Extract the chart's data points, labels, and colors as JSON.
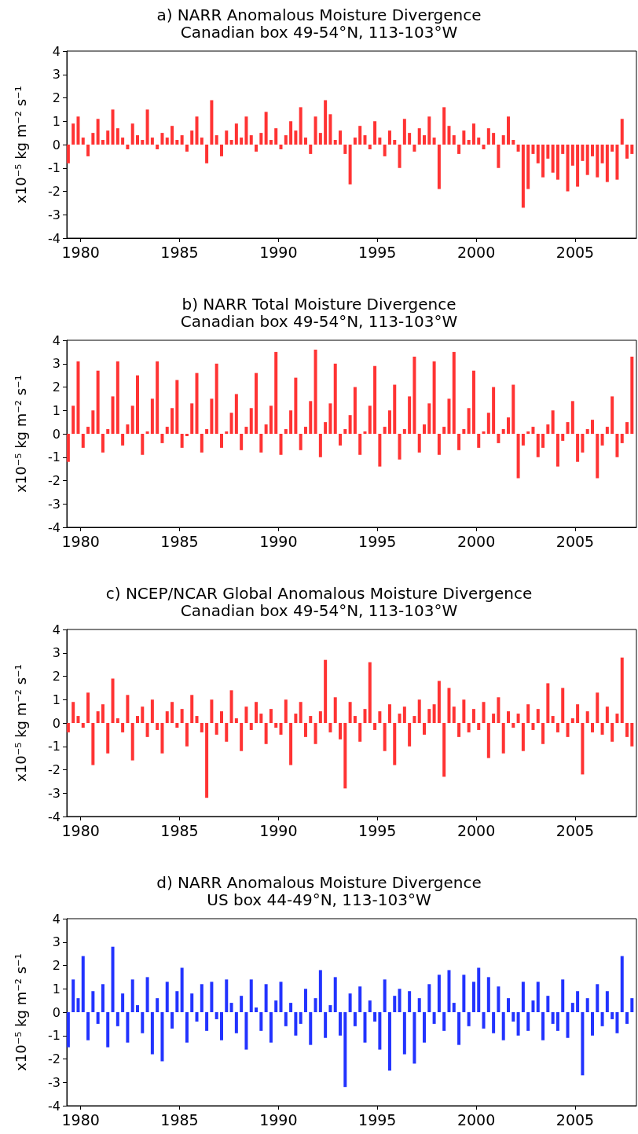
{
  "chart_data": [
    {
      "type": "bar",
      "title": "a) NARR Anomalous Moisture Divergence",
      "subtitle": "Canadian box 49-54°N, 113-103°W",
      "ylabel": "x10⁻⁵ kg m⁻² s⁻¹",
      "color": "#ff3333",
      "xlim": [
        1979.3,
        2008.1
      ],
      "xticks": [
        1980,
        1985,
        1990,
        1995,
        2000,
        2005
      ],
      "ylim": [
        -4,
        4
      ],
      "yticks": [
        -4,
        -3,
        -2,
        -1,
        0,
        1,
        2,
        3,
        4
      ],
      "x": [
        1979.375,
        1979.625,
        1979.875,
        1980.125,
        1980.375,
        1980.625,
        1980.875,
        1981.125,
        1981.375,
        1981.625,
        1981.875,
        1982.125,
        1982.375,
        1982.625,
        1982.875,
        1983.125,
        1983.375,
        1983.625,
        1983.875,
        1984.125,
        1984.375,
        1984.625,
        1984.875,
        1985.125,
        1985.375,
        1985.625,
        1985.875,
        1986.125,
        1986.375,
        1986.625,
        1986.875,
        1987.125,
        1987.375,
        1987.625,
        1987.875,
        1988.125,
        1988.375,
        1988.625,
        1988.875,
        1989.125,
        1989.375,
        1989.625,
        1989.875,
        1990.125,
        1990.375,
        1990.625,
        1990.875,
        1991.125,
        1991.375,
        1991.625,
        1991.875,
        1992.125,
        1992.375,
        1992.625,
        1992.875,
        1993.125,
        1993.375,
        1993.625,
        1993.875,
        1994.125,
        1994.375,
        1994.625,
        1994.875,
        1995.125,
        1995.375,
        1995.625,
        1995.875,
        1996.125,
        1996.375,
        1996.625,
        1996.875,
        1997.125,
        1997.375,
        1997.625,
        1997.875,
        1998.125,
        1998.375,
        1998.625,
        1998.875,
        1999.125,
        1999.375,
        1999.625,
        1999.875,
        2000.125,
        2000.375,
        2000.625,
        2000.875,
        2001.125,
        2001.375,
        2001.625,
        2001.875,
        2002.125,
        2002.375,
        2002.625,
        2002.875,
        2003.125,
        2003.375,
        2003.625,
        2003.875,
        2004.125,
        2004.375,
        2004.625,
        2004.875,
        2005.125,
        2005.375,
        2005.625,
        2005.875,
        2006.125,
        2006.375,
        2006.625,
        2006.875,
        2007.125,
        2007.375,
        2007.625,
        2007.875
      ],
      "values": [
        -0.8,
        0.9,
        1.2,
        0.3,
        -0.5,
        0.5,
        1.1,
        0.2,
        0.6,
        1.5,
        0.7,
        0.3,
        -0.2,
        0.9,
        0.4,
        0.2,
        1.5,
        0.3,
        -0.2,
        0.5,
        0.3,
        0.8,
        0.2,
        0.4,
        -0.3,
        0.6,
        1.2,
        0.3,
        -0.8,
        1.9,
        0.4,
        -0.5,
        0.6,
        0.2,
        0.9,
        0.3,
        1.2,
        0.4,
        -0.3,
        0.5,
        1.4,
        0.2,
        0.7,
        -0.2,
        0.4,
        1.0,
        0.6,
        1.6,
        0.3,
        -0.4,
        1.2,
        0.5,
        1.9,
        1.3,
        0.2,
        0.6,
        -0.4,
        -1.7,
        0.3,
        0.8,
        0.4,
        -0.2,
        1.0,
        0.3,
        -0.5,
        0.6,
        0.2,
        -1.0,
        1.1,
        0.5,
        -0.3,
        0.7,
        0.4,
        1.2,
        0.3,
        -1.9,
        1.6,
        0.8,
        0.4,
        -0.4,
        0.6,
        0.2,
        0.9,
        0.3,
        -0.2,
        0.7,
        0.5,
        -1.0,
        0.4,
        1.2,
        0.2,
        -0.3,
        -2.7,
        -1.9,
        -0.4,
        -0.8,
        -1.4,
        -0.6,
        -1.2,
        -1.5,
        -0.4,
        -2.0,
        -0.9,
        -1.8,
        -0.7,
        -1.3,
        -0.5,
        -1.4,
        -0.8,
        -1.6,
        -0.3,
        -1.5,
        1.1,
        -0.6,
        -0.4
      ]
    },
    {
      "type": "bar",
      "title": "b) NARR Total Moisture Divergence",
      "subtitle": "Canadian box 49-54°N, 113-103°W",
      "ylabel": "x10⁻⁵ kg m⁻² s⁻¹",
      "color": "#ff3333",
      "xlim": [
        1979.3,
        2008.1
      ],
      "xticks": [
        1980,
        1985,
        1990,
        1995,
        2000,
        2005
      ],
      "ylim": [
        -4,
        4
      ],
      "yticks": [
        -4,
        -3,
        -2,
        -1,
        0,
        1,
        2,
        3,
        4
      ],
      "x": [
        1979.375,
        1979.625,
        1979.875,
        1980.125,
        1980.375,
        1980.625,
        1980.875,
        1981.125,
        1981.375,
        1981.625,
        1981.875,
        1982.125,
        1982.375,
        1982.625,
        1982.875,
        1983.125,
        1983.375,
        1983.625,
        1983.875,
        1984.125,
        1984.375,
        1984.625,
        1984.875,
        1985.125,
        1985.375,
        1985.625,
        1985.875,
        1986.125,
        1986.375,
        1986.625,
        1986.875,
        1987.125,
        1987.375,
        1987.625,
        1987.875,
        1988.125,
        1988.375,
        1988.625,
        1988.875,
        1989.125,
        1989.375,
        1989.625,
        1989.875,
        1990.125,
        1990.375,
        1990.625,
        1990.875,
        1991.125,
        1991.375,
        1991.625,
        1991.875,
        1992.125,
        1992.375,
        1992.625,
        1992.875,
        1993.125,
        1993.375,
        1993.625,
        1993.875,
        1994.125,
        1994.375,
        1994.625,
        1994.875,
        1995.125,
        1995.375,
        1995.625,
        1995.875,
        1996.125,
        1996.375,
        1996.625,
        1996.875,
        1997.125,
        1997.375,
        1997.625,
        1997.875,
        1998.125,
        1998.375,
        1998.625,
        1998.875,
        1999.125,
        1999.375,
        1999.625,
        1999.875,
        2000.125,
        2000.375,
        2000.625,
        2000.875,
        2001.125,
        2001.375,
        2001.625,
        2001.875,
        2002.125,
        2002.375,
        2002.625,
        2002.875,
        2003.125,
        2003.375,
        2003.625,
        2003.875,
        2004.125,
        2004.375,
        2004.625,
        2004.875,
        2005.125,
        2005.375,
        2005.625,
        2005.875,
        2006.125,
        2006.375,
        2006.625,
        2006.875,
        2007.125,
        2007.375,
        2007.625,
        2007.875
      ],
      "values": [
        -1.2,
        1.2,
        3.1,
        -0.6,
        0.3,
        1.0,
        2.7,
        -0.8,
        0.2,
        1.6,
        3.1,
        -0.5,
        0.4,
        1.2,
        2.5,
        -0.9,
        0.1,
        1.5,
        3.1,
        -0.4,
        0.3,
        1.1,
        2.3,
        -0.6,
        -0.1,
        1.3,
        2.6,
        -0.8,
        0.2,
        1.5,
        3.0,
        -0.6,
        0.1,
        0.9,
        1.7,
        -0.7,
        0.3,
        1.1,
        2.6,
        -0.8,
        0.4,
        1.2,
        3.5,
        -0.9,
        0.2,
        1.0,
        2.4,
        -0.7,
        0.3,
        1.4,
        3.6,
        -1.0,
        0.5,
        1.3,
        3.0,
        -0.5,
        0.2,
        0.8,
        2.0,
        -0.9,
        0.1,
        1.2,
        2.9,
        -1.4,
        0.3,
        1.0,
        2.1,
        -1.1,
        0.2,
        1.6,
        3.3,
        -0.8,
        0.4,
        1.3,
        3.1,
        -0.9,
        0.3,
        1.5,
        3.5,
        -0.7,
        0.2,
        1.1,
        2.7,
        -0.6,
        0.1,
        0.9,
        2.0,
        -0.4,
        0.2,
        0.7,
        2.1,
        -1.9,
        -0.5,
        0.1,
        0.3,
        -1.0,
        -0.6,
        0.4,
        1.0,
        -1.4,
        -0.3,
        0.5,
        1.4,
        -1.2,
        -0.8,
        0.2,
        0.6,
        -1.9,
        -0.5,
        0.3,
        1.6,
        -1.0,
        -0.4,
        0.5,
        3.3
      ]
    },
    {
      "type": "bar",
      "title": "c) NCEP/NCAR Global Anomalous Moisture Divergence",
      "subtitle": "Canadian box 49-54°N, 113-103°W",
      "ylabel": "x10⁻⁵ kg m⁻² s⁻¹",
      "color": "#ff3333",
      "xlim": [
        1979.3,
        2008.1
      ],
      "xticks": [
        1980,
        1985,
        1990,
        1995,
        2000,
        2005
      ],
      "ylim": [
        -4,
        4
      ],
      "yticks": [
        -4,
        -3,
        -2,
        -1,
        0,
        1,
        2,
        3,
        4
      ],
      "x": [
        1979.375,
        1979.625,
        1979.875,
        1980.125,
        1980.375,
        1980.625,
        1980.875,
        1981.125,
        1981.375,
        1981.625,
        1981.875,
        1982.125,
        1982.375,
        1982.625,
        1982.875,
        1983.125,
        1983.375,
        1983.625,
        1983.875,
        1984.125,
        1984.375,
        1984.625,
        1984.875,
        1985.125,
        1985.375,
        1985.625,
        1985.875,
        1986.125,
        1986.375,
        1986.625,
        1986.875,
        1987.125,
        1987.375,
        1987.625,
        1987.875,
        1988.125,
        1988.375,
        1988.625,
        1988.875,
        1989.125,
        1989.375,
        1989.625,
        1989.875,
        1990.125,
        1990.375,
        1990.625,
        1990.875,
        1991.125,
        1991.375,
        1991.625,
        1991.875,
        1992.125,
        1992.375,
        1992.625,
        1992.875,
        1993.125,
        1993.375,
        1993.625,
        1993.875,
        1994.125,
        1994.375,
        1994.625,
        1994.875,
        1995.125,
        1995.375,
        1995.625,
        1995.875,
        1996.125,
        1996.375,
        1996.625,
        1996.875,
        1997.125,
        1997.375,
        1997.625,
        1997.875,
        1998.125,
        1998.375,
        1998.625,
        1998.875,
        1999.125,
        1999.375,
        1999.625,
        1999.875,
        2000.125,
        2000.375,
        2000.625,
        2000.875,
        2001.125,
        2001.375,
        2001.625,
        2001.875,
        2002.125,
        2002.375,
        2002.625,
        2002.875,
        2003.125,
        2003.375,
        2003.625,
        2003.875,
        2004.125,
        2004.375,
        2004.625,
        2004.875,
        2005.125,
        2005.375,
        2005.625,
        2005.875,
        2006.125,
        2006.375,
        2006.625,
        2006.875,
        2007.125,
        2007.375,
        2007.625,
        2007.875
      ],
      "values": [
        -0.4,
        0.9,
        0.3,
        -0.2,
        1.3,
        -1.8,
        0.5,
        0.8,
        -1.3,
        1.9,
        0.2,
        -0.4,
        1.2,
        -1.6,
        0.3,
        0.7,
        -0.6,
        1.0,
        -0.3,
        -1.3,
        0.5,
        0.9,
        -0.2,
        0.6,
        -1.0,
        1.2,
        0.3,
        -0.4,
        -3.2,
        1.0,
        -0.5,
        0.5,
        -0.8,
        1.4,
        0.2,
        -1.2,
        0.7,
        -0.3,
        0.9,
        0.4,
        -0.9,
        0.6,
        -0.2,
        -0.5,
        1.0,
        -1.8,
        0.4,
        0.9,
        -0.6,
        0.3,
        -0.9,
        0.5,
        2.7,
        -0.4,
        1.1,
        -0.7,
        -2.8,
        0.9,
        0.3,
        -0.8,
        0.6,
        2.6,
        -0.3,
        0.5,
        -1.2,
        0.8,
        -1.8,
        0.4,
        0.7,
        -1.0,
        0.3,
        1.0,
        -0.5,
        0.6,
        0.8,
        1.8,
        -2.3,
        1.5,
        0.7,
        -0.6,
        1.0,
        -0.4,
        0.6,
        -0.3,
        0.9,
        -1.5,
        0.4,
        1.1,
        -1.3,
        0.5,
        -0.2,
        0.4,
        -1.2,
        0.8,
        -0.3,
        0.6,
        -0.9,
        1.7,
        0.3,
        -0.4,
        1.5,
        -0.6,
        0.2,
        0.8,
        -2.2,
        0.5,
        -0.4,
        1.3,
        -0.5,
        0.7,
        -0.8,
        0.4,
        2.8,
        -0.6,
        -1.0
      ]
    },
    {
      "type": "bar",
      "title": "d) NARR Anomalous Moisture Divergence",
      "subtitle": "US box 44-49°N, 113-103°W",
      "ylabel": "x10⁻⁵ kg m⁻² s⁻¹",
      "color": "#2233ff",
      "xlim": [
        1979.3,
        2008.1
      ],
      "xticks": [
        1980,
        1985,
        1990,
        1995,
        2000,
        2005
      ],
      "ylim": [
        -4,
        4
      ],
      "yticks": [
        -4,
        -3,
        -2,
        -1,
        0,
        1,
        2,
        3,
        4
      ],
      "x": [
        1979.375,
        1979.625,
        1979.875,
        1980.125,
        1980.375,
        1980.625,
        1980.875,
        1981.125,
        1981.375,
        1981.625,
        1981.875,
        1982.125,
        1982.375,
        1982.625,
        1982.875,
        1983.125,
        1983.375,
        1983.625,
        1983.875,
        1984.125,
        1984.375,
        1984.625,
        1984.875,
        1985.125,
        1985.375,
        1985.625,
        1985.875,
        1986.125,
        1986.375,
        1986.625,
        1986.875,
        1987.125,
        1987.375,
        1987.625,
        1987.875,
        1988.125,
        1988.375,
        1988.625,
        1988.875,
        1989.125,
        1989.375,
        1989.625,
        1989.875,
        1990.125,
        1990.375,
        1990.625,
        1990.875,
        1991.125,
        1991.375,
        1991.625,
        1991.875,
        1992.125,
        1992.375,
        1992.625,
        1992.875,
        1993.125,
        1993.375,
        1993.625,
        1993.875,
        1994.125,
        1994.375,
        1994.625,
        1994.875,
        1995.125,
        1995.375,
        1995.625,
        1995.875,
        1996.125,
        1996.375,
        1996.625,
        1996.875,
        1997.125,
        1997.375,
        1997.625,
        1997.875,
        1998.125,
        1998.375,
        1998.625,
        1998.875,
        1999.125,
        1999.375,
        1999.625,
        1999.875,
        2000.125,
        2000.375,
        2000.625,
        2000.875,
        2001.125,
        2001.375,
        2001.625,
        2001.875,
        2002.125,
        2002.375,
        2002.625,
        2002.875,
        2003.125,
        2003.375,
        2003.625,
        2003.875,
        2004.125,
        2004.375,
        2004.625,
        2004.875,
        2005.125,
        2005.375,
        2005.625,
        2005.875,
        2006.125,
        2006.375,
        2006.625,
        2006.875,
        2007.125,
        2007.375,
        2007.625,
        2007.875
      ],
      "values": [
        -1.5,
        1.4,
        0.6,
        2.4,
        -1.2,
        0.9,
        -0.5,
        1.2,
        -1.5,
        2.8,
        -0.6,
        0.8,
        -1.3,
        1.4,
        0.3,
        -0.9,
        1.5,
        -1.8,
        0.6,
        -2.1,
        1.3,
        -0.7,
        0.9,
        1.9,
        -1.3,
        0.8,
        -0.4,
        1.2,
        -0.8,
        1.3,
        -0.3,
        -1.2,
        1.4,
        0.4,
        -0.9,
        0.7,
        -1.6,
        1.4,
        0.2,
        -0.8,
        1.2,
        -1.3,
        0.5,
        1.3,
        -0.6,
        0.4,
        -1.0,
        -0.5,
        1.0,
        -1.4,
        0.6,
        1.8,
        -1.1,
        0.3,
        1.5,
        -1.0,
        -3.2,
        0.8,
        -0.6,
        1.1,
        -1.3,
        0.5,
        -0.4,
        -1.6,
        1.4,
        -2.5,
        0.7,
        1.0,
        -1.8,
        0.9,
        -2.2,
        0.6,
        -1.3,
        1.2,
        -0.5,
        1.6,
        -0.8,
        1.8,
        0.4,
        -1.4,
        1.6,
        -0.6,
        1.3,
        1.9,
        -0.7,
        1.5,
        -0.9,
        1.1,
        -1.2,
        0.6,
        -0.4,
        -1.0,
        1.3,
        -0.8,
        0.5,
        1.3,
        -1.2,
        0.7,
        -0.5,
        -0.8,
        1.4,
        -1.1,
        0.4,
        0.9,
        -2.7,
        0.6,
        -1.0,
        1.2,
        -0.6,
        0.9,
        -0.3,
        -0.9,
        2.4,
        -0.5,
        0.6
      ]
    }
  ]
}
